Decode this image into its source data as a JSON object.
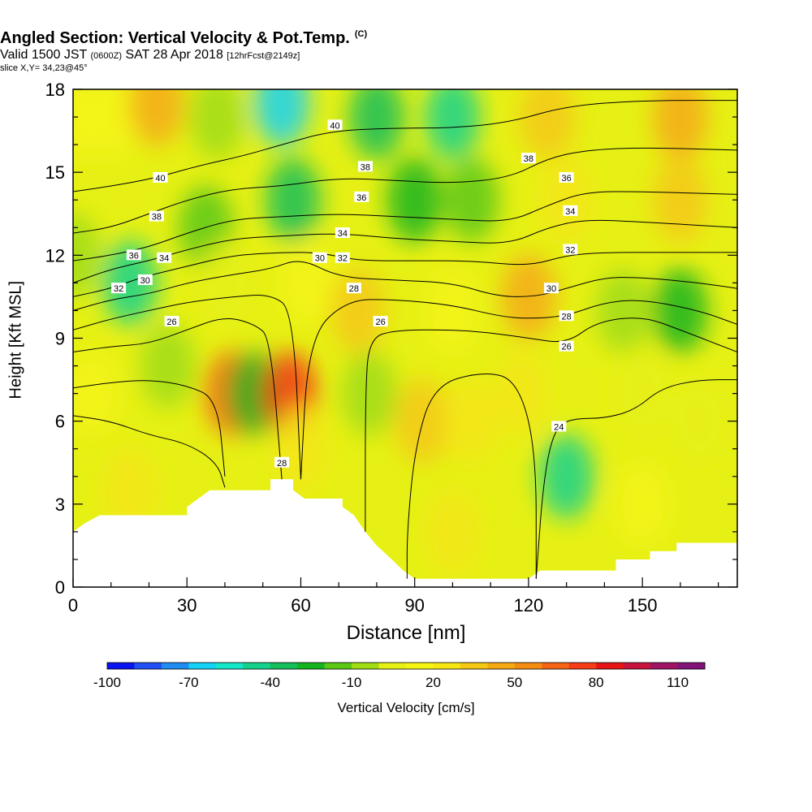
{
  "title": {
    "main": "Angled Section: Vertical Velocity & Pot.Temp.",
    "mark": "(C)",
    "valid_prefix": "Valid 1500 JST",
    "valid_utc": "(0600Z)",
    "valid_date": "SAT 28 Apr 2018",
    "forecast": "[12hrFcst@2149z]",
    "slice": "slice X,Y= 34,23@45°"
  },
  "colorbar": {
    "label": "Vertical Velocity [cm/s]",
    "tick_labels": [
      "-100",
      "-70",
      "-40",
      "-10",
      "20",
      "50",
      "80",
      "110"
    ],
    "colors": [
      "#0a14f0",
      "#1e50f5",
      "#1e8cf0",
      "#14d2f5",
      "#14e6c8",
      "#14d28c",
      "#14be5a",
      "#14b41e",
      "#5ac814",
      "#a0dc14",
      "#e6f014",
      "#f5f514",
      "#f5e614",
      "#f5c814",
      "#f5aa14",
      "#f58c14",
      "#f56414",
      "#f53c14",
      "#e61414",
      "#c8143c",
      "#a01464",
      "#821478"
    ]
  },
  "chart_data": {
    "type": "heatmap",
    "title": "Angled Section: Vertical Velocity & Pot.Temp.",
    "xlabel": "Distance [nm]",
    "ylabel": "Height [Kft MSL]",
    "xlim": [
      0,
      175
    ],
    "ylim": [
      0,
      18
    ],
    "xticks": [
      0,
      30,
      60,
      90,
      120,
      150
    ],
    "yticks": [
      0,
      3,
      6,
      9,
      12,
      15,
      18
    ],
    "colorbar_range": [
      -100,
      110
    ],
    "colorbar_step": 10,
    "terrain": [
      [
        0,
        2
      ],
      [
        3,
        2.3
      ],
      [
        7,
        2.6
      ],
      [
        30,
        2.6
      ],
      [
        30,
        2.9
      ],
      [
        33,
        3.2
      ],
      [
        36,
        3.5
      ],
      [
        52,
        3.5
      ],
      [
        52,
        3.9
      ],
      [
        58,
        3.9
      ],
      [
        58,
        3.5
      ],
      [
        61,
        3.2
      ],
      [
        71,
        3.2
      ],
      [
        71,
        2.9
      ],
      [
        74,
        2.6
      ],
      [
        77,
        2
      ],
      [
        80,
        1.5
      ],
      [
        84,
        1.0
      ],
      [
        87,
        0.6
      ],
      [
        90,
        0.3
      ],
      [
        120,
        0.3
      ],
      [
        123,
        0.6
      ],
      [
        143,
        0.6
      ],
      [
        143,
        1.0
      ],
      [
        152,
        1.0
      ],
      [
        152,
        1.3
      ],
      [
        159,
        1.3
      ],
      [
        159,
        1.6
      ],
      [
        175,
        1.6
      ]
    ],
    "velocity_field": [
      [
        0,
        17,
        15
      ],
      [
        10,
        17,
        10
      ],
      [
        22,
        17.5,
        40
      ],
      [
        38,
        17,
        -10
      ],
      [
        55,
        17.5,
        -70
      ],
      [
        80,
        17,
        -40
      ],
      [
        100,
        17,
        -50
      ],
      [
        125,
        17,
        30
      ],
      [
        160,
        17,
        40
      ],
      [
        0,
        12,
        -10
      ],
      [
        15,
        11,
        -45
      ],
      [
        35,
        13,
        -20
      ],
      [
        58,
        14,
        -40
      ],
      [
        90,
        14,
        -25
      ],
      [
        105,
        14,
        -20
      ],
      [
        130,
        14,
        20
      ],
      [
        160,
        14,
        30
      ],
      [
        5,
        7,
        10
      ],
      [
        25,
        8,
        -5
      ],
      [
        42,
        7,
        60
      ],
      [
        48,
        7,
        -25
      ],
      [
        57,
        7,
        70
      ],
      [
        78,
        7,
        -10
      ],
      [
        92,
        6,
        30
      ],
      [
        105,
        6,
        20
      ],
      [
        118,
        7,
        25
      ],
      [
        130,
        4,
        -45
      ],
      [
        150,
        7,
        5
      ],
      [
        165,
        6,
        5
      ],
      [
        15,
        3.5,
        20
      ],
      [
        60,
        5,
        20
      ],
      [
        100,
        2,
        20
      ],
      [
        150,
        3,
        10
      ],
      [
        40,
        11,
        5
      ],
      [
        62,
        11,
        15
      ],
      [
        75,
        10,
        30
      ],
      [
        100,
        10,
        10
      ],
      [
        120,
        10.5,
        40
      ],
      [
        145,
        10,
        -10
      ],
      [
        160,
        10,
        -25
      ]
    ],
    "contours": [
      {
        "level": "24",
        "points": [
          [
            0,
            6.2
          ],
          [
            10,
            6
          ],
          [
            20,
            5.5
          ],
          [
            30,
            5.2
          ],
          [
            38,
            4.5
          ],
          [
            40,
            3.6
          ]
        ]
      },
      {
        "level": "24",
        "points": [
          [
            88,
            0.3
          ],
          [
            88,
            2
          ],
          [
            90,
            5
          ],
          [
            95,
            7.3
          ],
          [
            108,
            7.8
          ],
          [
            117,
            7.5
          ],
          [
            122,
            5
          ],
          [
            122,
            0.3
          ]
        ]
      },
      {
        "level": "24",
        "points": [
          [
            122,
            0.3
          ],
          [
            124,
            4
          ],
          [
            127,
            5.8
          ],
          [
            132,
            6.1
          ],
          [
            140,
            6.1
          ],
          [
            148,
            6.4
          ],
          [
            155,
            7.2
          ],
          [
            165,
            7.5
          ],
          [
            175,
            7.5
          ]
        ]
      },
      {
        "level": "26",
        "points": [
          [
            0,
            7.2
          ],
          [
            10,
            7.4
          ],
          [
            20,
            7.5
          ],
          [
            30,
            7.3
          ],
          [
            38,
            6.8
          ],
          [
            40,
            4.0
          ]
        ]
      },
      {
        "level": "26",
        "points": [
          [
            0,
            8.5
          ],
          [
            10,
            8.7
          ],
          [
            20,
            8.8
          ],
          [
            30,
            9.3
          ],
          [
            40,
            9.8
          ],
          [
            48,
            9.5
          ],
          [
            52,
            9.0
          ],
          [
            55,
            3.9
          ]
        ]
      },
      {
        "level": "26",
        "points": [
          [
            77,
            2.0
          ],
          [
            77,
            7
          ],
          [
            78,
            9.0
          ],
          [
            85,
            9.3
          ],
          [
            100,
            9.3
          ],
          [
            110,
            9.2
          ],
          [
            120,
            9.0
          ],
          [
            130,
            8.8
          ],
          [
            138,
            9.6
          ],
          [
            150,
            9.8
          ],
          [
            160,
            9.3
          ],
          [
            175,
            8.5
          ]
        ]
      },
      {
        "level": "28",
        "points": [
          [
            0,
            9.3
          ],
          [
            10,
            9.7
          ],
          [
            20,
            10.0
          ],
          [
            30,
            10.3
          ],
          [
            42,
            10.5
          ],
          [
            52,
            10.6
          ],
          [
            58,
            10.0
          ],
          [
            60,
            3.9
          ]
        ]
      },
      {
        "level": "28",
        "points": [
          [
            60,
            3.9
          ],
          [
            62,
            9
          ],
          [
            72,
            10.4
          ],
          [
            85,
            10.4
          ],
          [
            100,
            10.2
          ],
          [
            112,
            9.8
          ],
          [
            120,
            9.7
          ],
          [
            130,
            9.8
          ],
          [
            140,
            10.3
          ],
          [
            150,
            10.4
          ],
          [
            165,
            10.0
          ],
          [
            175,
            9.5
          ]
        ]
      },
      {
        "level": "30",
        "points": [
          [
            0,
            10.0
          ],
          [
            10,
            10.4
          ],
          [
            20,
            10.6
          ],
          [
            30,
            11.0
          ],
          [
            42,
            11.3
          ],
          [
            52,
            11.5
          ],
          [
            60,
            11.9
          ],
          [
            70,
            11.2
          ],
          [
            85,
            11.1
          ],
          [
            100,
            11.0
          ],
          [
            112,
            10.5
          ],
          [
            122,
            10.5
          ],
          [
            130,
            10.8
          ],
          [
            140,
            11.2
          ],
          [
            150,
            11.2
          ],
          [
            165,
            11.0
          ],
          [
            175,
            10.8
          ]
        ]
      },
      {
        "level": "32",
        "points": [
          [
            0,
            10.5
          ],
          [
            10,
            10.8
          ],
          [
            18,
            11.2
          ],
          [
            30,
            11.6
          ],
          [
            42,
            12.0
          ],
          [
            55,
            12.1
          ],
          [
            65,
            12.1
          ],
          [
            75,
            11.8
          ],
          [
            90,
            11.8
          ],
          [
            105,
            11.8
          ],
          [
            120,
            11.6
          ],
          [
            130,
            12.0
          ],
          [
            140,
            12.1
          ],
          [
            155,
            12.1
          ],
          [
            175,
            12.1
          ]
        ]
      },
      {
        "level": "34",
        "points": [
          [
            0,
            11.0
          ],
          [
            10,
            11.5
          ],
          [
            20,
            11.8
          ],
          [
            30,
            12.2
          ],
          [
            42,
            12.6
          ],
          [
            55,
            12.7
          ],
          [
            70,
            12.8
          ],
          [
            85,
            12.6
          ],
          [
            100,
            12.5
          ],
          [
            115,
            12.4
          ],
          [
            125,
            13.0
          ],
          [
            135,
            13.3
          ],
          [
            150,
            13.2
          ],
          [
            175,
            13.0
          ]
        ]
      },
      {
        "level": "36",
        "points": [
          [
            0,
            11.8
          ],
          [
            10,
            12.0
          ],
          [
            20,
            12.3
          ],
          [
            30,
            12.8
          ],
          [
            42,
            13.3
          ],
          [
            55,
            13.4
          ],
          [
            70,
            13.5
          ],
          [
            85,
            13.4
          ],
          [
            100,
            13.3
          ],
          [
            115,
            13.2
          ],
          [
            125,
            13.8
          ],
          [
            135,
            14.3
          ],
          [
            150,
            14.3
          ],
          [
            175,
            14.2
          ]
        ]
      },
      {
        "level": "38",
        "points": [
          [
            0,
            12.8
          ],
          [
            10,
            13.0
          ],
          [
            20,
            13.5
          ],
          [
            30,
            14.0
          ],
          [
            42,
            14.4
          ],
          [
            55,
            14.5
          ],
          [
            70,
            14.8
          ],
          [
            85,
            14.7
          ],
          [
            100,
            14.6
          ],
          [
            115,
            14.8
          ],
          [
            125,
            15.5
          ],
          [
            135,
            15.8
          ],
          [
            150,
            15.9
          ],
          [
            175,
            15.8
          ]
        ]
      },
      {
        "level": "40",
        "points": [
          [
            0,
            14.3
          ],
          [
            10,
            14.5
          ],
          [
            22,
            14.8
          ],
          [
            32,
            15.2
          ],
          [
            45,
            15.6
          ],
          [
            55,
            16.0
          ],
          [
            68,
            16.5
          ],
          [
            85,
            16.6
          ],
          [
            100,
            16.6
          ],
          [
            115,
            16.8
          ],
          [
            130,
            17.4
          ],
          [
            150,
            17.6
          ],
          [
            175,
            17.6
          ]
        ]
      }
    ],
    "contour_labels": [
      {
        "text": "40",
        "x": 69,
        "y": 16.7
      },
      {
        "text": "40",
        "x": 23,
        "y": 14.8
      },
      {
        "text": "38",
        "x": 77,
        "y": 15.2
      },
      {
        "text": "38",
        "x": 22,
        "y": 13.4
      },
      {
        "text": "38",
        "x": 120,
        "y": 15.5
      },
      {
        "text": "36",
        "x": 76,
        "y": 14.1
      },
      {
        "text": "36",
        "x": 16,
        "y": 12.0
      },
      {
        "text": "36",
        "x": 130,
        "y": 14.8
      },
      {
        "text": "34",
        "x": 71,
        "y": 12.8
      },
      {
        "text": "34",
        "x": 24,
        "y": 11.9
      },
      {
        "text": "34",
        "x": 131,
        "y": 13.6
      },
      {
        "text": "32",
        "x": 71,
        "y": 11.9
      },
      {
        "text": "32",
        "x": 12,
        "y": 10.8
      },
      {
        "text": "32",
        "x": 131,
        "y": 12.2
      },
      {
        "text": "30",
        "x": 65,
        "y": 11.9
      },
      {
        "text": "30",
        "x": 19,
        "y": 11.1
      },
      {
        "text": "30",
        "x": 126,
        "y": 10.8
      },
      {
        "text": "28",
        "x": 74,
        "y": 10.8
      },
      {
        "text": "28",
        "x": 130,
        "y": 9.8
      },
      {
        "text": "28",
        "x": 55,
        "y": 4.5
      },
      {
        "text": "26",
        "x": 26,
        "y": 9.6
      },
      {
        "text": "26",
        "x": 81,
        "y": 9.6
      },
      {
        "text": "26",
        "x": 130,
        "y": 8.7
      },
      {
        "text": "24",
        "x": 128,
        "y": 5.8
      }
    ]
  }
}
